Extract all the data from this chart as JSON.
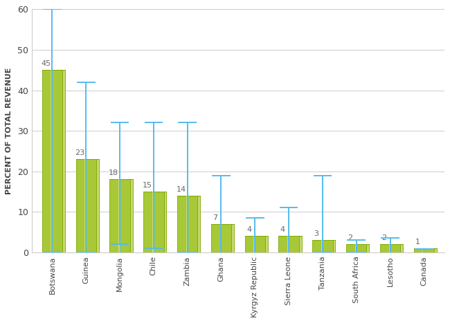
{
  "countries": [
    "Botswana",
    "Guinea",
    "Mongolia",
    "Chile",
    "Zambia",
    "Ghana",
    "Kyrgyz Republic",
    "Sierra Leone",
    "Tanzania",
    "South Africa",
    "Lesotho",
    "Canada"
  ],
  "avg": [
    45,
    23,
    18,
    15,
    14,
    7,
    4,
    4,
    3,
    2,
    2,
    1
  ],
  "min": [
    0,
    0,
    2,
    1,
    0,
    -0.5,
    -0.2,
    -0.2,
    0,
    0,
    -0.3,
    -0.2
  ],
  "max": [
    60,
    42,
    32,
    32,
    32,
    19,
    8.5,
    11,
    19,
    3,
    3.5,
    0.8
  ],
  "bar_color_main": "#a8c837",
  "bar_color_right": "#c8d870",
  "bar_color_top": "#c8d870",
  "bar_color_dark": "#7aaa00",
  "bar_highlight": "#d8e890",
  "whisker_color": "#55bbee",
  "bar_width": 0.6,
  "ylim": [
    0,
    60
  ],
  "yticks": [
    0,
    10,
    20,
    30,
    40,
    50,
    60
  ],
  "ylabel": "PERCENT OF TOTAL REVENUE",
  "background_color": "#ffffff",
  "grid_color": "#cccccc",
  "label_color": "#666666",
  "tick_label_color": "#444444",
  "figsize": [
    6.5,
    4.67
  ],
  "dpi": 100
}
